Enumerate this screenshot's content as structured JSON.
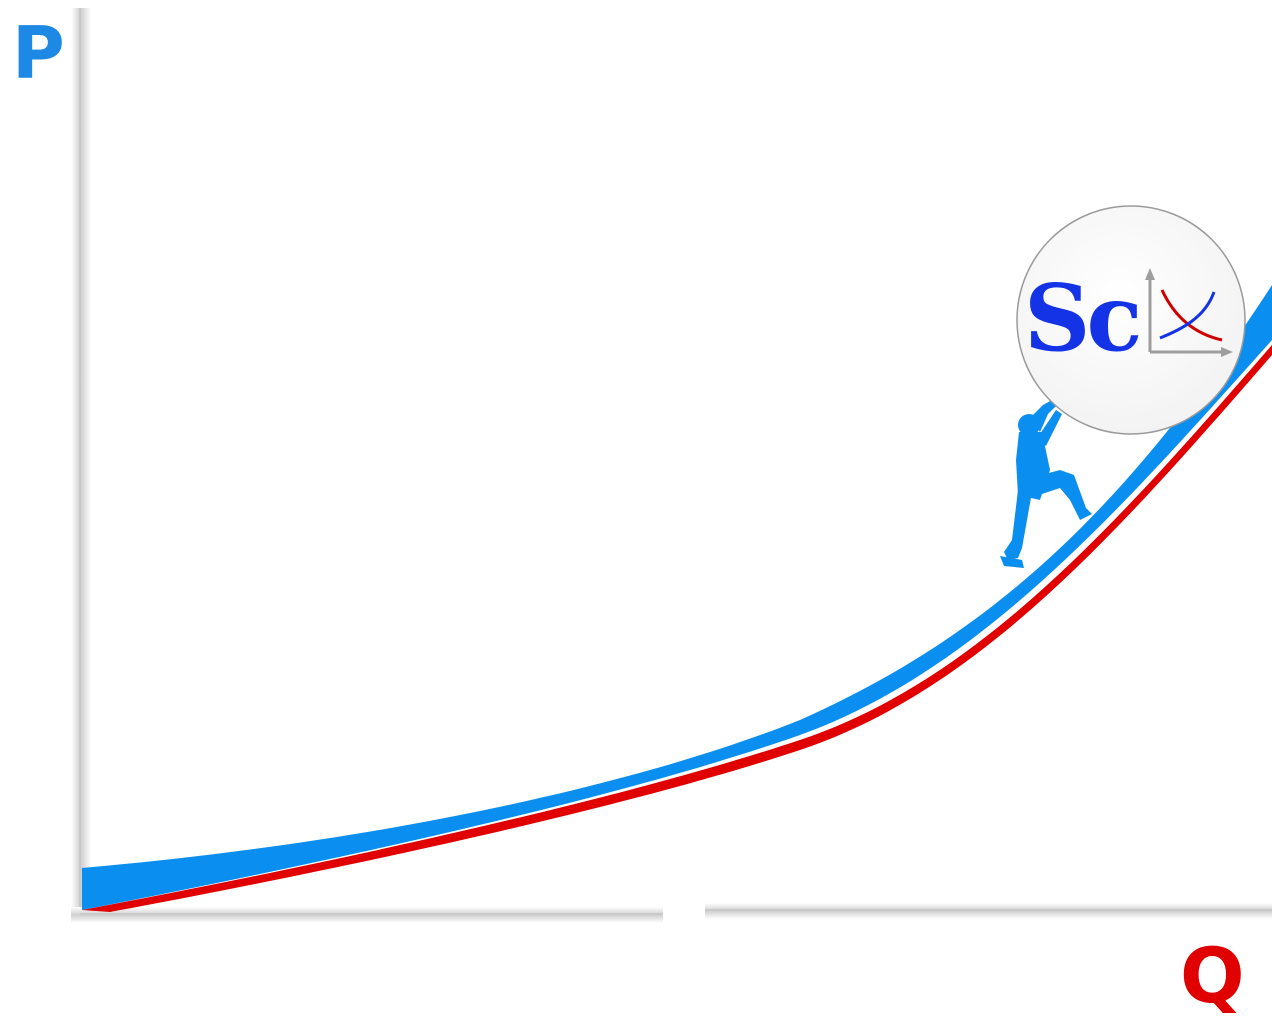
{
  "axes": {
    "y_label": "P",
    "x_label": "Q"
  },
  "logo": {
    "text": "Sc",
    "mark": "supply-demand-graph-icon"
  },
  "figure": {
    "character": "climber-silhouette"
  },
  "colors": {
    "y_label": "#1e88e5",
    "x_label": "#e00000",
    "slope_band": "#0a8ff0",
    "curve_line": "#e00000",
    "climber": "#0a8ff0",
    "logo_text": "#1533e6",
    "logo_demand_line": "#d00000",
    "logo_supply_line": "#1533e6",
    "logo_axes": "#9e9e9e",
    "axis_line": "#d5d5d5"
  }
}
